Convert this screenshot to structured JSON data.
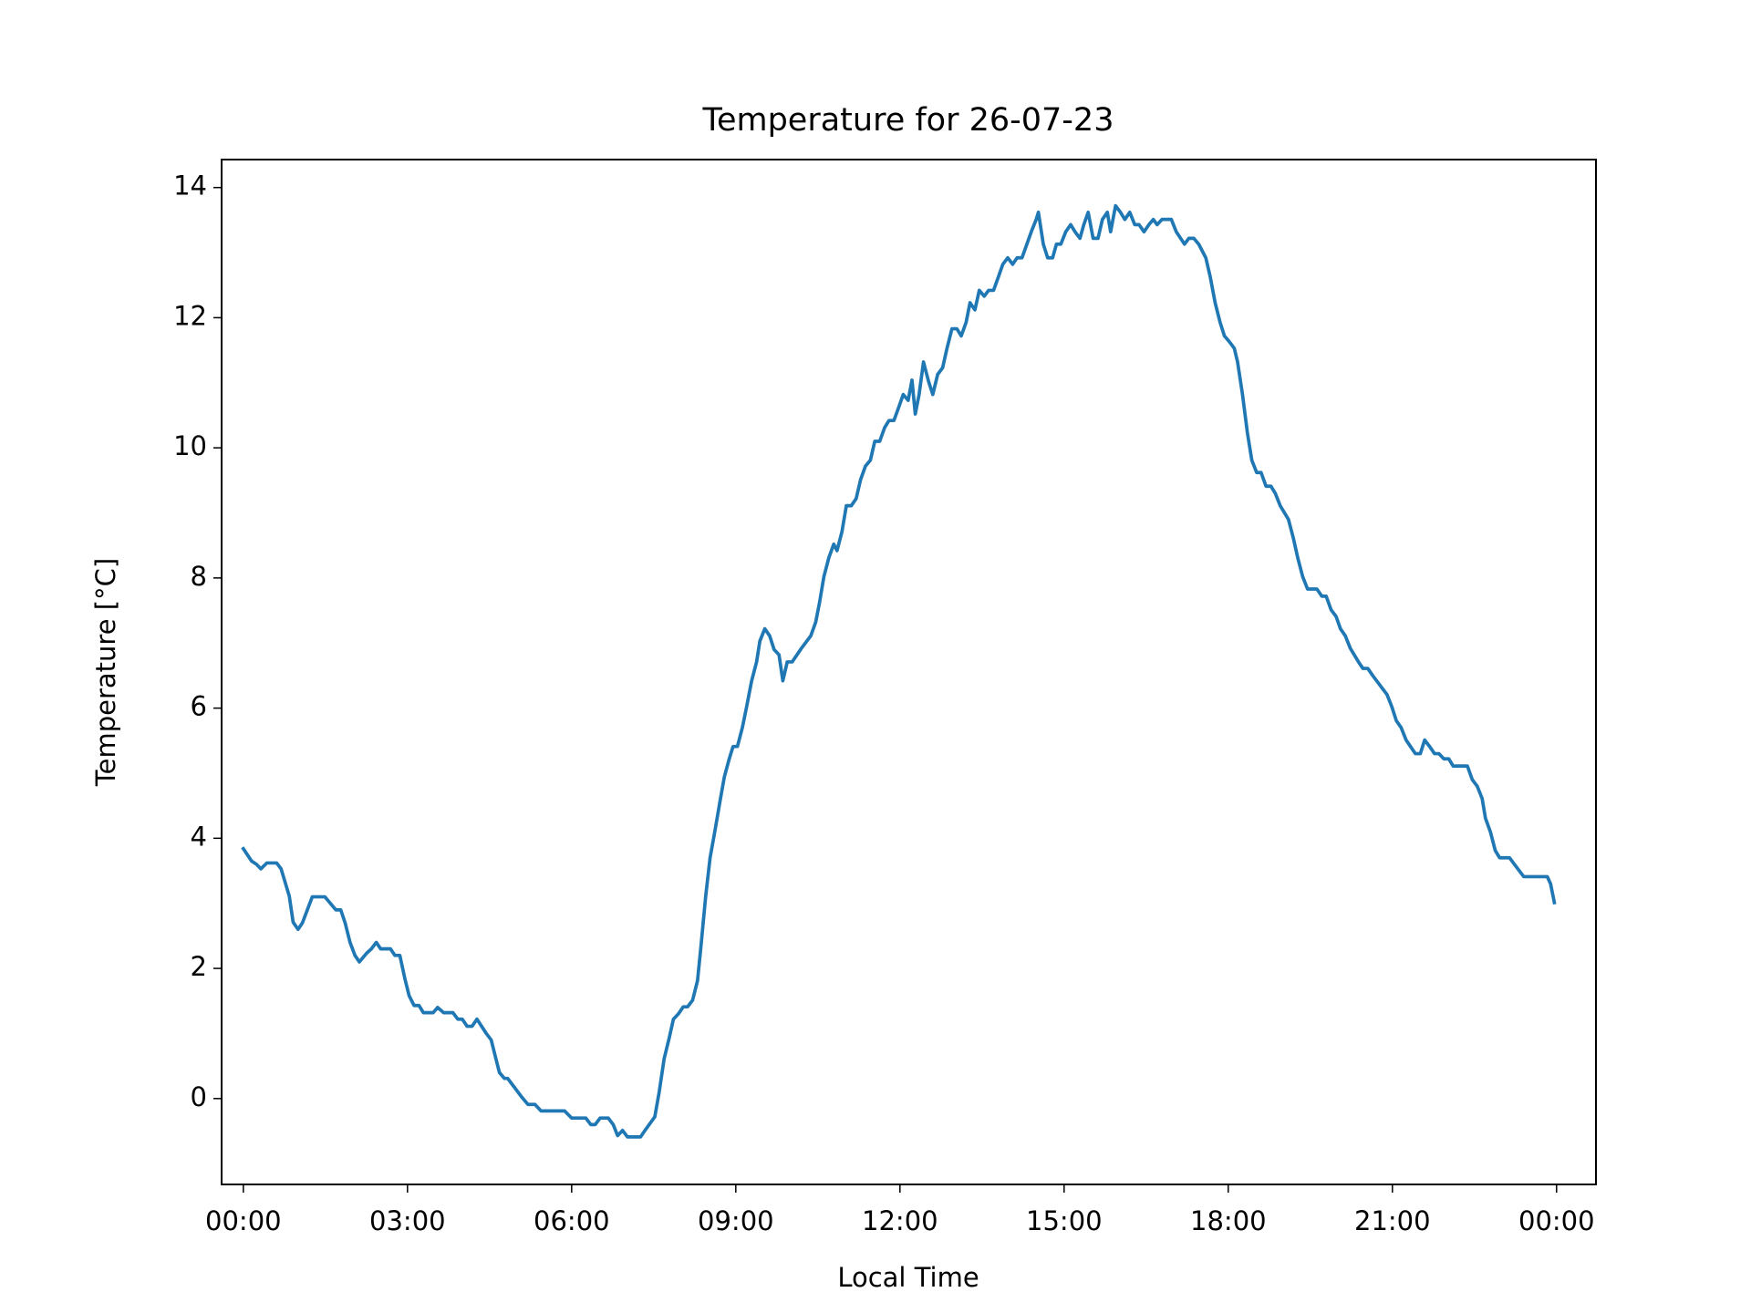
{
  "chart_data": {
    "type": "line",
    "title": "Temperature for 26-07-23",
    "xlabel": "Local Time",
    "ylabel": "Temperature [°C]",
    "x": [
      0,
      0.15,
      0.24,
      0.32,
      0.43,
      0.61,
      0.69,
      0.84,
      0.91,
      1.0,
      1.08,
      1.26,
      1.49,
      1.69,
      1.78,
      1.86,
      1.95,
      2.04,
      2.12,
      2.25,
      2.34,
      2.43,
      2.51,
      2.69,
      2.77,
      2.86,
      2.95,
      3.03,
      3.12,
      3.21,
      3.29,
      3.47,
      3.55,
      3.66,
      3.83,
      3.92,
      4.0,
      4.09,
      4.18,
      4.27,
      4.44,
      4.53,
      4.61,
      4.68,
      4.77,
      4.83,
      5.09,
      5.2,
      5.33,
      5.44,
      5.87,
      6.0,
      6.26,
      6.35,
      6.43,
      6.52,
      6.67,
      6.76,
      6.84,
      6.93,
      7.02,
      7.26,
      7.34,
      7.52,
      7.6,
      7.69,
      7.78,
      7.86,
      7.95,
      8.04,
      8.12,
      8.21,
      8.3,
      8.36,
      8.45,
      8.53,
      8.62,
      8.71,
      8.79,
      8.88,
      8.95,
      9.03,
      9.12,
      9.2,
      9.29,
      9.38,
      9.44,
      9.53,
      9.62,
      9.7,
      9.79,
      9.86,
      9.94,
      10.03,
      10.2,
      10.37,
      10.46,
      10.53,
      10.61,
      10.7,
      10.79,
      10.85,
      10.94,
      11.02,
      11.11,
      11.2,
      11.28,
      11.37,
      11.46,
      11.54,
      11.63,
      11.72,
      11.8,
      11.89,
      11.98,
      12.06,
      12.15,
      12.22,
      12.28,
      12.35,
      12.43,
      12.52,
      12.6,
      12.69,
      12.78,
      12.86,
      12.95,
      13.04,
      13.12,
      13.21,
      13.28,
      13.37,
      13.45,
      13.54,
      13.62,
      13.71,
      13.8,
      13.88,
      13.97,
      14.06,
      14.14,
      14.23,
      14.32,
      14.4,
      14.49,
      14.53,
      14.62,
      14.7,
      14.79,
      14.86,
      14.94,
      15.03,
      15.12,
      15.2,
      15.29,
      15.36,
      15.44,
      15.53,
      15.62,
      15.7,
      15.79,
      15.85,
      15.94,
      16.03,
      16.11,
      16.2,
      16.29,
      16.37,
      16.46,
      16.55,
      16.63,
      16.7,
      16.79,
      16.96,
      17.05,
      17.2,
      17.28,
      17.37,
      17.46,
      17.59,
      17.67,
      17.76,
      17.85,
      17.93,
      18.02,
      18.11,
      18.17,
      18.26,
      18.35,
      18.43,
      18.52,
      18.6,
      18.69,
      18.78,
      18.86,
      18.95,
      19.1,
      19.19,
      19.27,
      19.36,
      19.45,
      19.62,
      19.71,
      19.79,
      19.88,
      19.97,
      20.05,
      20.14,
      20.23,
      20.38,
      20.46,
      20.55,
      20.64,
      20.81,
      20.9,
      20.99,
      21.07,
      21.16,
      21.25,
      21.33,
      21.42,
      21.51,
      21.59,
      21.68,
      21.77,
      21.85,
      21.94,
      22.03,
      22.11,
      22.37,
      22.46,
      22.55,
      22.64,
      22.7,
      22.79,
      22.88,
      22.96,
      23.14,
      23.31,
      23.4,
      23.83,
      23.89,
      23.96
    ],
    "series": [
      {
        "name": "Temperature",
        "color": "#1f77b4",
        "values": [
          3.84,
          3.65,
          3.6,
          3.53,
          3.62,
          3.62,
          3.53,
          3.11,
          2.71,
          2.6,
          2.7,
          3.1,
          3.1,
          2.9,
          2.9,
          2.7,
          2.4,
          2.2,
          2.1,
          2.23,
          2.3,
          2.4,
          2.3,
          2.3,
          2.2,
          2.2,
          1.85,
          1.58,
          1.43,
          1.43,
          1.32,
          1.32,
          1.4,
          1.32,
          1.32,
          1.22,
          1.22,
          1.11,
          1.11,
          1.22,
          1.0,
          0.9,
          0.63,
          0.4,
          0.31,
          0.31,
          0.02,
          -0.09,
          -0.09,
          -0.19,
          -0.19,
          -0.3,
          -0.3,
          -0.4,
          -0.4,
          -0.3,
          -0.3,
          -0.4,
          -0.57,
          -0.49,
          -0.59,
          -0.59,
          -0.49,
          -0.28,
          0.1,
          0.61,
          0.92,
          1.22,
          1.3,
          1.41,
          1.41,
          1.51,
          1.81,
          2.31,
          3.11,
          3.7,
          4.12,
          4.56,
          4.94,
          5.22,
          5.41,
          5.41,
          5.7,
          6.03,
          6.42,
          6.71,
          7.03,
          7.22,
          7.11,
          6.9,
          6.82,
          6.42,
          6.71,
          6.71,
          6.92,
          7.11,
          7.32,
          7.62,
          8.02,
          8.31,
          8.52,
          8.42,
          8.71,
          9.11,
          9.11,
          9.22,
          9.51,
          9.72,
          9.81,
          10.1,
          10.1,
          10.31,
          10.42,
          10.42,
          10.63,
          10.82,
          10.73,
          11.04,
          10.52,
          10.82,
          11.32,
          11.03,
          10.82,
          11.13,
          11.23,
          11.53,
          11.83,
          11.83,
          11.72,
          11.93,
          12.23,
          12.12,
          12.42,
          12.33,
          12.42,
          12.42,
          12.63,
          12.82,
          12.92,
          12.82,
          12.92,
          12.92,
          13.13,
          13.32,
          13.51,
          13.62,
          13.13,
          12.92,
          12.92,
          13.13,
          13.13,
          13.32,
          13.43,
          13.32,
          13.22,
          13.43,
          13.62,
          13.22,
          13.22,
          13.51,
          13.62,
          13.32,
          13.72,
          13.62,
          13.51,
          13.62,
          13.43,
          13.43,
          13.32,
          13.43,
          13.51,
          13.43,
          13.51,
          13.51,
          13.32,
          13.13,
          13.22,
          13.22,
          13.13,
          12.92,
          12.63,
          12.23,
          11.93,
          11.72,
          11.63,
          11.53,
          11.32,
          10.82,
          10.23,
          9.81,
          9.62,
          9.62,
          9.41,
          9.41,
          9.3,
          9.11,
          8.9,
          8.61,
          8.31,
          8.02,
          7.83,
          7.83,
          7.72,
          7.72,
          7.51,
          7.41,
          7.22,
          7.11,
          6.92,
          6.71,
          6.61,
          6.61,
          6.5,
          6.31,
          6.21,
          6.02,
          5.81,
          5.7,
          5.51,
          5.41,
          5.3,
          5.3,
          5.51,
          5.41,
          5.3,
          5.3,
          5.22,
          5.22,
          5.11,
          5.11,
          4.9,
          4.8,
          4.61,
          4.31,
          4.1,
          3.81,
          3.7,
          3.7,
          3.51,
          3.41,
          3.41,
          3.3,
          3.01
        ]
      }
    ],
    "xlim": [
      -0.397,
      24.72
    ],
    "xticks": [
      {
        "value": 0,
        "label": "00:00"
      },
      {
        "value": 3,
        "label": "03:00"
      },
      {
        "value": 6,
        "label": "06:00"
      },
      {
        "value": 9,
        "label": "09:00"
      },
      {
        "value": 12,
        "label": "12:00"
      },
      {
        "value": 15,
        "label": "15:00"
      },
      {
        "value": 18,
        "label": "18:00"
      },
      {
        "value": 21,
        "label": "21:00"
      },
      {
        "value": 24,
        "label": "00:00"
      }
    ],
    "ylim": [
      -1.32,
      14.43
    ],
    "yticks": [
      0,
      2,
      4,
      6,
      8,
      10,
      12,
      14
    ],
    "grid": false
  }
}
